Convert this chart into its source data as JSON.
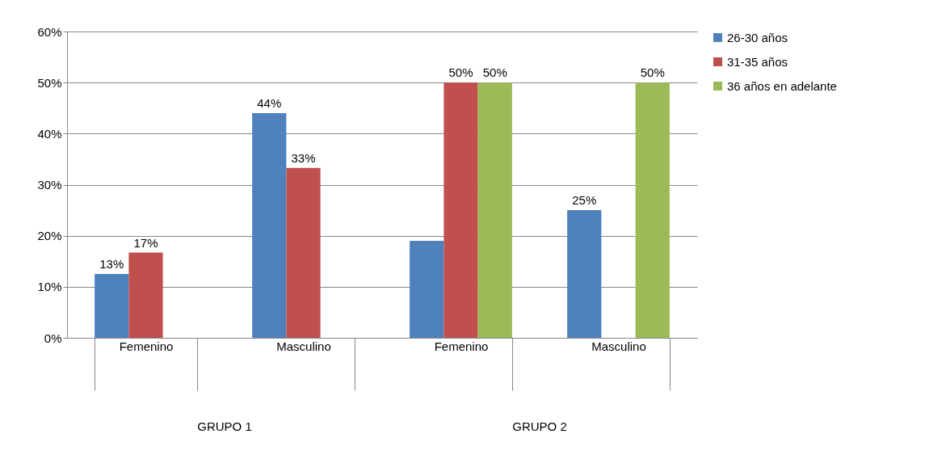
{
  "chart_data": {
    "type": "bar",
    "categories": [
      "Femenino",
      "Masculino",
      "Femenino",
      "Masculino"
    ],
    "series": [
      {
        "name": "26-30 años",
        "color": "#4f81bd",
        "values": [
          12.5,
          44,
          19,
          25
        ],
        "value_labels": [
          "13%",
          "44%",
          null,
          "25%"
        ]
      },
      {
        "name": "31-35 años",
        "color": "#c0504d",
        "values": [
          16.7,
          33.3,
          50,
          null
        ],
        "value_labels": [
          "17%",
          "33%",
          "50%",
          null
        ]
      },
      {
        "name": "36 años en adelante",
        "color": "#9bbb59",
        "values": [
          null,
          null,
          50,
          50
        ],
        "value_labels": [
          null,
          null,
          "50%",
          "50%"
        ]
      }
    ],
    "ylim": [
      0,
      60
    ],
    "yticks": [
      {
        "value": 0,
        "label": "0%"
      },
      {
        "value": 10,
        "label": "10%"
      },
      {
        "value": 20,
        "label": "20%"
      },
      {
        "value": 30,
        "label": "30%"
      },
      {
        "value": 40,
        "label": "40%"
      },
      {
        "value": 50,
        "label": "50%"
      },
      {
        "value": 60,
        "label": "60%"
      }
    ],
    "grid": true,
    "legend": "right",
    "annotations": [
      "GRUPO 1",
      "GRUPO 2"
    ]
  }
}
